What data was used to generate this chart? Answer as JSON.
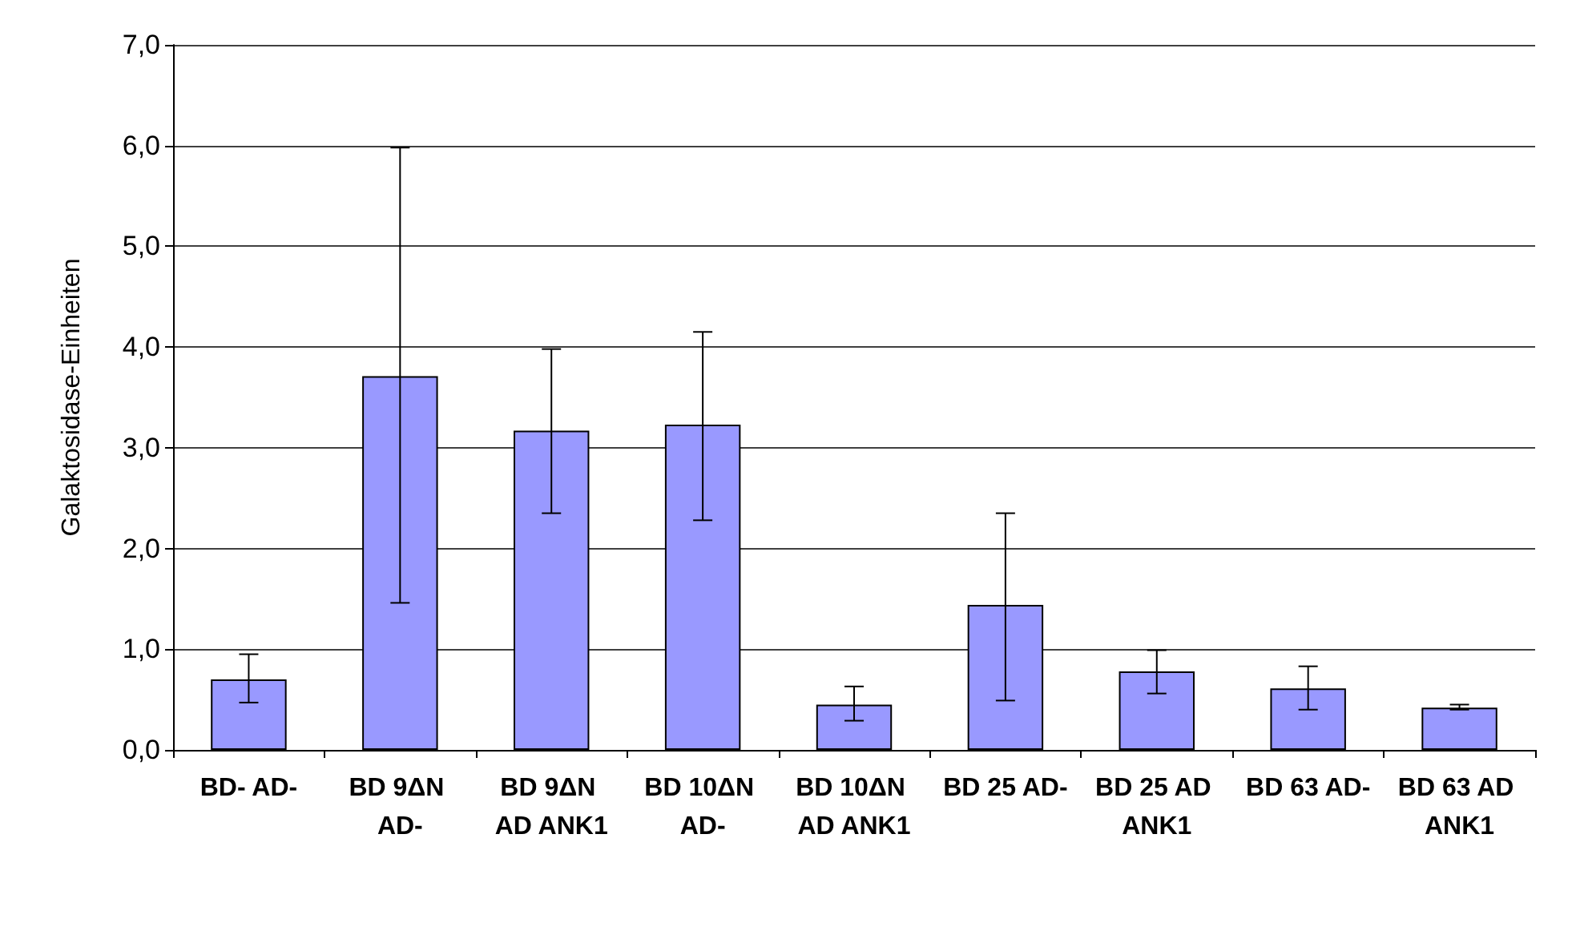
{
  "chart_data": {
    "type": "bar",
    "ylabel": "Galaktosidase-Einheiten",
    "categories": [
      "BD- AD-",
      "BD 9ΔN AD-",
      "BD 9ΔN AD ANK1",
      "BD 10ΔN AD-",
      "BD 10ΔN AD ANK1",
      "BD 25 AD-",
      "BD 25 AD ANK1",
      "BD 63 AD-",
      "BD 63 AD ANK1"
    ],
    "values": [
      0.7,
      3.71,
      3.17,
      3.23,
      0.45,
      1.44,
      0.78,
      0.61,
      0.42
    ],
    "errors": [
      [
        0.47,
        0.95
      ],
      [
        1.46,
        5.98
      ],
      [
        2.35,
        3.98
      ],
      [
        2.28,
        4.15
      ],
      [
        0.29,
        0.63
      ],
      [
        0.49,
        2.35
      ],
      [
        0.56,
        0.99
      ],
      [
        0.4,
        0.83
      ],
      [
        0.4,
        0.45
      ]
    ],
    "color": "#9999ff",
    "ylim": [
      0,
      7
    ],
    "yticks": [
      {
        "value": 0,
        "label": "0,0"
      },
      {
        "value": 1,
        "label": "1,0"
      },
      {
        "value": 2,
        "label": "2,0"
      },
      {
        "value": 3,
        "label": "3,0"
      },
      {
        "value": 4,
        "label": "4,0"
      },
      {
        "value": 5,
        "label": "5,0"
      },
      {
        "value": 6,
        "label": "6,0"
      },
      {
        "value": 7,
        "label": "7,0"
      }
    ],
    "grid": "y"
  }
}
